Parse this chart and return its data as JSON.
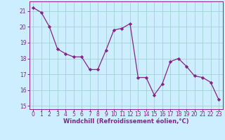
{
  "x": [
    0,
    1,
    2,
    3,
    4,
    5,
    6,
    7,
    8,
    9,
    10,
    11,
    12,
    13,
    14,
    15,
    16,
    17,
    18,
    19,
    20,
    21,
    22,
    23
  ],
  "y": [
    21.2,
    20.9,
    20.0,
    18.6,
    18.3,
    18.1,
    18.1,
    17.3,
    17.3,
    18.5,
    19.8,
    19.9,
    20.2,
    16.8,
    16.8,
    15.7,
    16.4,
    17.8,
    18.0,
    17.5,
    16.9,
    16.8,
    16.5,
    15.4
  ],
  "line_color": "#882288",
  "marker": "D",
  "marker_size": 2.2,
  "bg_color": "#cceeff",
  "grid_color": "#99cccc",
  "xlabel": "Windchill (Refroidissement éolien,°C)",
  "ylim": [
    14.8,
    21.6
  ],
  "xlim": [
    -0.5,
    23.5
  ],
  "yticks": [
    15,
    16,
    17,
    18,
    19,
    20,
    21
  ],
  "xticks": [
    0,
    1,
    2,
    3,
    4,
    5,
    6,
    7,
    8,
    9,
    10,
    11,
    12,
    13,
    14,
    15,
    16,
    17,
    18,
    19,
    20,
    21,
    22,
    23
  ],
  "tick_color": "#882288",
  "label_color": "#882288"
}
